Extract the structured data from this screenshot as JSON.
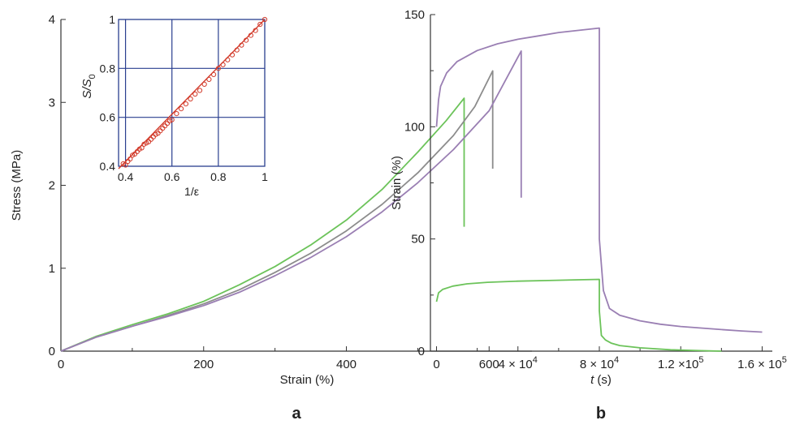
{
  "chart_data": [
    {
      "type": "line",
      "panel_label": "a",
      "xlabel": "Strain (%)",
      "ylabel": "Stress (MPa)",
      "xlim": [
        0,
        660
      ],
      "ylim": [
        0,
        4
      ],
      "xticks": [
        0,
        200,
        400,
        600
      ],
      "yticks": [
        0,
        1,
        2,
        3,
        4
      ],
      "xtick_labels": [
        "0",
        "200",
        "400",
        "600"
      ],
      "ytick_labels": [
        "0",
        "1",
        "2",
        "3",
        "4"
      ],
      "grid": false,
      "colors": {
        "green": "#6cc35a",
        "gray": "#8c8c8c",
        "purple": "#9a7fb3"
      },
      "series": [
        {
          "color": "green",
          "x": [
            0,
            50,
            100,
            150,
            200,
            250,
            300,
            350,
            400,
            450,
            500,
            540,
            565,
            565
          ],
          "y": [
            0,
            0.18,
            0.32,
            0.45,
            0.6,
            0.8,
            1.02,
            1.28,
            1.58,
            1.95,
            2.4,
            2.78,
            3.05,
            1.5
          ]
        },
        {
          "color": "gray",
          "x": [
            0,
            50,
            100,
            150,
            200,
            250,
            300,
            350,
            400,
            450,
            500,
            550,
            580,
            605,
            605
          ],
          "y": [
            0,
            0.17,
            0.3,
            0.43,
            0.57,
            0.74,
            0.95,
            1.18,
            1.45,
            1.77,
            2.15,
            2.6,
            2.95,
            3.38,
            2.2
          ]
        },
        {
          "color": "purple",
          "x": [
            0,
            50,
            100,
            150,
            200,
            250,
            300,
            350,
            400,
            450,
            500,
            550,
            600,
            645,
            645
          ],
          "y": [
            0,
            0.17,
            0.3,
            0.42,
            0.55,
            0.71,
            0.91,
            1.13,
            1.38,
            1.68,
            2.03,
            2.43,
            2.9,
            3.62,
            1.85
          ]
        }
      ],
      "inset": {
        "type": "scatter",
        "xlabel": "1/ε",
        "ylabel": "S/S",
        "ylabel_sub": "0",
        "xlim": [
          0.37,
          1.0
        ],
        "ylim": [
          0.4,
          1.0
        ],
        "xticks": [
          0.4,
          0.6,
          0.8,
          1.0
        ],
        "yticks": [
          0.4,
          0.6,
          0.8,
          1.0
        ],
        "xtick_labels": [
          "0.4",
          "0.6",
          "0.8",
          "1"
        ],
        "ytick_labels": [
          "0.4",
          "0.6",
          "0.8",
          "1"
        ],
        "grid": true,
        "color": "#d23b2b",
        "fit_line": {
          "x": [
            0.37,
            1.0
          ],
          "y": [
            0.39,
            1.0
          ]
        },
        "points": {
          "x": [
            0.39,
            0.4,
            0.41,
            0.42,
            0.43,
            0.44,
            0.45,
            0.46,
            0.47,
            0.48,
            0.49,
            0.5,
            0.51,
            0.52,
            0.53,
            0.54,
            0.55,
            0.56,
            0.57,
            0.58,
            0.59,
            0.6,
            0.62,
            0.64,
            0.66,
            0.68,
            0.7,
            0.72,
            0.74,
            0.76,
            0.78,
            0.8,
            0.82,
            0.84,
            0.86,
            0.88,
            0.9,
            0.92,
            0.94,
            0.96,
            0.98,
            1.0
          ],
          "y": [
            0.41,
            0.405,
            0.42,
            0.43,
            0.445,
            0.45,
            0.46,
            0.47,
            0.475,
            0.49,
            0.495,
            0.5,
            0.51,
            0.52,
            0.53,
            0.535,
            0.545,
            0.555,
            0.565,
            0.575,
            0.585,
            0.59,
            0.615,
            0.635,
            0.655,
            0.675,
            0.695,
            0.71,
            0.735,
            0.755,
            0.775,
            0.8,
            0.815,
            0.835,
            0.855,
            0.875,
            0.895,
            0.915,
            0.935,
            0.955,
            0.98,
            1.0
          ]
        }
      }
    },
    {
      "type": "line",
      "panel_label": "b",
      "xlabel_italic": "t",
      "xlabel_rest": " (s)",
      "ylabel": "Strain (%)",
      "xlim": [
        -3000,
        165000
      ],
      "ylim": [
        0,
        150
      ],
      "xticks": [
        0,
        40000,
        80000,
        120000,
        160000
      ],
      "yticks": [
        0,
        50,
        100,
        150
      ],
      "xtick_labels": [
        {
          "base": "0",
          "exp": ""
        },
        {
          "base": "4 × 10",
          "exp": "4"
        },
        {
          "base": "8 × 10",
          "exp": "4"
        },
        {
          "base": "1.2 ×10",
          "exp": "5"
        },
        {
          "base": "1.6 × 10",
          "exp": "5"
        }
      ],
      "ytick_labels": [
        "0",
        "50",
        "100",
        "150"
      ],
      "grid": false,
      "colors": {
        "green": "#6cc35a",
        "purple": "#9a7fb3"
      },
      "series": [
        {
          "color": "purple",
          "x": [
            0,
            1000,
            2000,
            5000,
            10000,
            20000,
            30000,
            40000,
            50000,
            60000,
            70000,
            80000,
            80000,
            82000,
            85000,
            90000,
            100000,
            110000,
            120000,
            130000,
            140000,
            150000,
            160000
          ],
          "y": [
            100,
            112,
            118,
            124,
            129,
            134,
            137,
            139,
            140.5,
            142,
            143,
            144,
            50,
            27,
            19,
            16,
            13.5,
            12,
            11,
            10.3,
            9.6,
            9,
            8.5
          ]
        },
        {
          "color": "green",
          "x": [
            0,
            1000,
            3000,
            8000,
            15000,
            25000,
            40000,
            55000,
            70000,
            80000,
            80000,
            81000,
            83000,
            86000,
            90000,
            100000,
            115000,
            130000,
            140000
          ],
          "y": [
            22,
            26,
            27.5,
            29,
            30,
            30.7,
            31.2,
            31.5,
            31.8,
            32,
            18,
            7,
            5,
            3.5,
            2.5,
            1.5,
            0.6,
            0.2,
            0
          ]
        }
      ]
    }
  ]
}
